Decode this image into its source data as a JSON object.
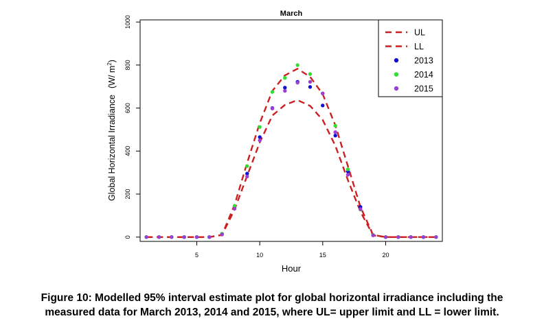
{
  "chart_data": {
    "type": "line",
    "title": "March",
    "xlabel": "Hour",
    "ylabel": "Global Horizontal Irradiance",
    "ylabel_unit": "(W/ m",
    "ylabel_unit_sup": "2",
    "ylabel_unit_close": ")",
    "xlim": [
      0.5,
      24.5
    ],
    "ylim": [
      -20,
      1010
    ],
    "xticks": [
      5,
      10,
      15,
      20
    ],
    "yticks": [
      0,
      200,
      400,
      600,
      800,
      1000
    ],
    "x": [
      1,
      2,
      3,
      4,
      5,
      6,
      7,
      8,
      9,
      10,
      11,
      12,
      13,
      14,
      15,
      16,
      17,
      18,
      19,
      20,
      21,
      22,
      23,
      24
    ],
    "series": [
      {
        "name": "UL",
        "kind": "line",
        "color": "#cc1f1f",
        "dash": true,
        "values": [
          0,
          0,
          0,
          0,
          0,
          0,
          10,
          150,
          345,
          530,
          680,
          752,
          783,
          745,
          665,
          520,
          330,
          140,
          10,
          0,
          0,
          0,
          0,
          0
        ]
      },
      {
        "name": "LL",
        "kind": "line",
        "color": "#cc1f1f",
        "dash": true,
        "values": [
          0,
          0,
          0,
          0,
          0,
          0,
          10,
          128,
          285,
          440,
          565,
          615,
          637,
          610,
          545,
          425,
          265,
          118,
          8,
          0,
          0,
          0,
          0,
          0
        ]
      },
      {
        "name": "2013",
        "kind": "points",
        "color": "#1010d0",
        "values": [
          0,
          0,
          0,
          0,
          0,
          0,
          15,
          140,
          295,
          465,
          600,
          695,
          722,
          698,
          612,
          472,
          305,
          140,
          10,
          0,
          0,
          0,
          0,
          0
        ]
      },
      {
        "name": "2014",
        "kind": "points",
        "color": "#33dd33",
        "values": [
          0,
          0,
          0,
          0,
          0,
          0,
          15,
          145,
          330,
          512,
          675,
          740,
          800,
          758,
          668,
          518,
          315,
          128,
          10,
          0,
          0,
          0,
          0,
          0
        ]
      },
      {
        "name": "2015",
        "kind": "points",
        "color": "#9b3fd4",
        "values": [
          0,
          0,
          0,
          0,
          0,
          0,
          12,
          132,
          282,
          450,
          598,
          680,
          718,
          722,
          668,
          488,
          290,
          130,
          8,
          0,
          0,
          0,
          0,
          0
        ]
      }
    ],
    "legend_position": "top-right"
  },
  "caption": {
    "line1": "Figure 10: Modelled 95% interval estimate plot for global horizontal irradiance including the",
    "line2": "measured data for March 2013, 2014 and 2015, where UL= upper limit and LL = lower limit."
  }
}
